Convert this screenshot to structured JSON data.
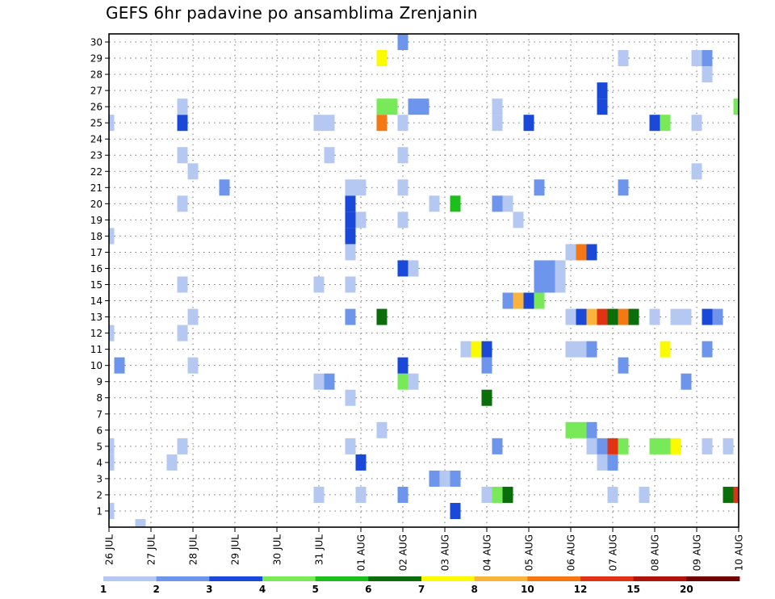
{
  "title": "GEFS 6hr padavine po ansamblima Zrenjanin",
  "chart_data": {
    "type": "heatmap",
    "title": "GEFS 6hr padavine po ansamblima Zrenjanin",
    "xlabel": "",
    "ylabel": "",
    "x_ticks": [
      "26 JUL",
      "27 JUL",
      "28 JUL",
      "29 JUL",
      "30 JUL",
      "31 JUL",
      "01 AUG",
      "02 AUG",
      "03 AUG",
      "04 AUG",
      "05 AUG",
      "06 AUG",
      "07 AUG",
      "08 AUG",
      "09 AUG",
      "10 AUG"
    ],
    "y_ticks": [
      1,
      2,
      3,
      4,
      5,
      6,
      7,
      8,
      9,
      10,
      11,
      12,
      13,
      14,
      15,
      16,
      17,
      18,
      19,
      20,
      21,
      22,
      23,
      24,
      25,
      26,
      27,
      28,
      29,
      30
    ],
    "x_range_steps": [
      0,
      60
    ],
    "y_range": [
      0,
      30
    ],
    "grid": true,
    "legend": "bottom colorbar",
    "colorbar_labels": [
      "1",
      "2",
      "3",
      "4",
      "5",
      "6",
      "7",
      "8",
      "10",
      "12",
      "15",
      "20"
    ],
    "colorbar_colors": [
      "#b5c8f2",
      "#6e95ec",
      "#1a48d8",
      "#78ea5a",
      "#1dbf1d",
      "#0a6e0a",
      "#fafa00",
      "#fab43c",
      "#f57814",
      "#e13214",
      "#af140a",
      "#6e0000"
    ],
    "points": [
      {
        "x": 0,
        "y": 1,
        "c": 0
      },
      {
        "x": 0,
        "y": 4,
        "c": 0
      },
      {
        "x": 0,
        "y": 5,
        "c": 0
      },
      {
        "x": 0,
        "y": 12,
        "c": 0
      },
      {
        "x": 0,
        "y": 18,
        "c": 0
      },
      {
        "x": 0,
        "y": 25,
        "c": 0
      },
      {
        "x": 1,
        "y": 10,
        "c": 1
      },
      {
        "x": 3,
        "y": 0,
        "c": 0
      },
      {
        "x": 6,
        "y": 4,
        "c": 0
      },
      {
        "x": 7,
        "y": 5,
        "c": 0
      },
      {
        "x": 7,
        "y": 12,
        "c": 0
      },
      {
        "x": 7,
        "y": 15,
        "c": 0
      },
      {
        "x": 7,
        "y": 20,
        "c": 0
      },
      {
        "x": 7,
        "y": 23,
        "c": 0
      },
      {
        "x": 7,
        "y": 25,
        "c": 2
      },
      {
        "x": 7,
        "y": 26,
        "c": 0
      },
      {
        "x": 8,
        "y": 10,
        "c": 0
      },
      {
        "x": 8,
        "y": 13,
        "c": 0
      },
      {
        "x": 8,
        "y": 22,
        "c": 0
      },
      {
        "x": 11,
        "y": 21,
        "c": 1
      },
      {
        "x": 20,
        "y": 2,
        "c": 0
      },
      {
        "x": 20,
        "y": 9,
        "c": 0
      },
      {
        "x": 20,
        "y": 15,
        "c": 0
      },
      {
        "x": 20,
        "y": 25,
        "c": 0
      },
      {
        "x": 21,
        "y": 9,
        "c": 1
      },
      {
        "x": 21,
        "y": 23,
        "c": 0
      },
      {
        "x": 21,
        "y": 25,
        "c": 0
      },
      {
        "x": 23,
        "y": 5,
        "c": 0
      },
      {
        "x": 23,
        "y": 8,
        "c": 0
      },
      {
        "x": 23,
        "y": 13,
        "c": 1
      },
      {
        "x": 23,
        "y": 15,
        "c": 0
      },
      {
        "x": 23,
        "y": 17,
        "c": 0
      },
      {
        "x": 23,
        "y": 18,
        "c": 2
      },
      {
        "x": 23,
        "y": 19,
        "c": 2
      },
      {
        "x": 23,
        "y": 20,
        "c": 2
      },
      {
        "x": 23,
        "y": 21,
        "c": 0
      },
      {
        "x": 24,
        "y": 2,
        "c": 0
      },
      {
        "x": 24,
        "y": 4,
        "c": 2
      },
      {
        "x": 24,
        "y": 19,
        "c": 0
      },
      {
        "x": 24,
        "y": 21,
        "c": 0
      },
      {
        "x": 26,
        "y": 6,
        "c": 0
      },
      {
        "x": 26,
        "y": 13,
        "c": 5
      },
      {
        "x": 26,
        "y": 25,
        "c": 8
      },
      {
        "x": 26,
        "y": 26,
        "c": 3
      },
      {
        "x": 26,
        "y": 29,
        "c": 6
      },
      {
        "x": 27,
        "y": 26,
        "c": 3
      },
      {
        "x": 28,
        "y": 2,
        "c": 1
      },
      {
        "x": 28,
        "y": 9,
        "c": 3
      },
      {
        "x": 28,
        "y": 10,
        "c": 2
      },
      {
        "x": 28,
        "y": 16,
        "c": 2
      },
      {
        "x": 28,
        "y": 19,
        "c": 0
      },
      {
        "x": 28,
        "y": 21,
        "c": 0
      },
      {
        "x": 28,
        "y": 23,
        "c": 0
      },
      {
        "x": 28,
        "y": 25,
        "c": 0
      },
      {
        "x": 28,
        "y": 30,
        "c": 1
      },
      {
        "x": 29,
        "y": 9,
        "c": 0
      },
      {
        "x": 29,
        "y": 16,
        "c": 0
      },
      {
        "x": 29,
        "y": 26,
        "c": 1
      },
      {
        "x": 30,
        "y": 26,
        "c": 1
      },
      {
        "x": 31,
        "y": 3,
        "c": 1
      },
      {
        "x": 31,
        "y": 20,
        "c": 0
      },
      {
        "x": 32,
        "y": 3,
        "c": 0
      },
      {
        "x": 33,
        "y": 1,
        "c": 2
      },
      {
        "x": 33,
        "y": 3,
        "c": 1
      },
      {
        "x": 33,
        "y": 20,
        "c": 4
      },
      {
        "x": 34,
        "y": 11,
        "c": 0
      },
      {
        "x": 35,
        "y": 11,
        "c": 6
      },
      {
        "x": 36,
        "y": 2,
        "c": 0
      },
      {
        "x": 36,
        "y": 8,
        "c": 5
      },
      {
        "x": 36,
        "y": 10,
        "c": 1
      },
      {
        "x": 36,
        "y": 11,
        "c": 2
      },
      {
        "x": 37,
        "y": 2,
        "c": 3
      },
      {
        "x": 37,
        "y": 5,
        "c": 1
      },
      {
        "x": 37,
        "y": 20,
        "c": 1
      },
      {
        "x": 37,
        "y": 25,
        "c": 0
      },
      {
        "x": 37,
        "y": 26,
        "c": 0
      },
      {
        "x": 38,
        "y": 2,
        "c": 5
      },
      {
        "x": 38,
        "y": 14,
        "c": 1
      },
      {
        "x": 38,
        "y": 20,
        "c": 0
      },
      {
        "x": 39,
        "y": 14,
        "c": 7
      },
      {
        "x": 39,
        "y": 19,
        "c": 0
      },
      {
        "x": 40,
        "y": 14,
        "c": 2
      },
      {
        "x": 40,
        "y": 25,
        "c": 2
      },
      {
        "x": 41,
        "y": 14,
        "c": 3
      },
      {
        "x": 41,
        "y": 15,
        "c": 1
      },
      {
        "x": 41,
        "y": 16,
        "c": 1
      },
      {
        "x": 41,
        "y": 21,
        "c": 1
      },
      {
        "x": 42,
        "y": 15,
        "c": 1
      },
      {
        "x": 42,
        "y": 16,
        "c": 1
      },
      {
        "x": 43,
        "y": 15,
        "c": 0
      },
      {
        "x": 43,
        "y": 16,
        "c": 0
      },
      {
        "x": 44,
        "y": 6,
        "c": 3
      },
      {
        "x": 44,
        "y": 11,
        "c": 0
      },
      {
        "x": 44,
        "y": 13,
        "c": 0
      },
      {
        "x": 44,
        "y": 17,
        "c": 0
      },
      {
        "x": 45,
        "y": 6,
        "c": 3
      },
      {
        "x": 45,
        "y": 11,
        "c": 0
      },
      {
        "x": 45,
        "y": 13,
        "c": 2
      },
      {
        "x": 45,
        "y": 17,
        "c": 8
      },
      {
        "x": 46,
        "y": 5,
        "c": 0
      },
      {
        "x": 46,
        "y": 6,
        "c": 1
      },
      {
        "x": 46,
        "y": 11,
        "c": 1
      },
      {
        "x": 46,
        "y": 13,
        "c": 7
      },
      {
        "x": 46,
        "y": 17,
        "c": 2
      },
      {
        "x": 47,
        "y": 4,
        "c": 0
      },
      {
        "x": 47,
        "y": 5,
        "c": 1
      },
      {
        "x": 47,
        "y": 13,
        "c": 9
      },
      {
        "x": 47,
        "y": 26,
        "c": 2
      },
      {
        "x": 47,
        "y": 27,
        "c": 2
      },
      {
        "x": 48,
        "y": 2,
        "c": 0
      },
      {
        "x": 48,
        "y": 4,
        "c": 1
      },
      {
        "x": 48,
        "y": 5,
        "c": 9
      },
      {
        "x": 48,
        "y": 13,
        "c": 5
      },
      {
        "x": 49,
        "y": 5,
        "c": 3
      },
      {
        "x": 49,
        "y": 10,
        "c": 1
      },
      {
        "x": 49,
        "y": 13,
        "c": 8
      },
      {
        "x": 49,
        "y": 21,
        "c": 1
      },
      {
        "x": 49,
        "y": 29,
        "c": 0
      },
      {
        "x": 50,
        "y": 13,
        "c": 5
      },
      {
        "x": 51,
        "y": 2,
        "c": 0
      },
      {
        "x": 52,
        "y": 5,
        "c": 3
      },
      {
        "x": 52,
        "y": 13,
        "c": 0
      },
      {
        "x": 52,
        "y": 25,
        "c": 2
      },
      {
        "x": 53,
        "y": 5,
        "c": 3
      },
      {
        "x": 53,
        "y": 11,
        "c": 6
      },
      {
        "x": 53,
        "y": 25,
        "c": 3
      },
      {
        "x": 54,
        "y": 5,
        "c": 6
      },
      {
        "x": 54,
        "y": 13,
        "c": 0
      },
      {
        "x": 55,
        "y": 9,
        "c": 1
      },
      {
        "x": 55,
        "y": 13,
        "c": 0
      },
      {
        "x": 56,
        "y": 22,
        "c": 0
      },
      {
        "x": 56,
        "y": 25,
        "c": 0
      },
      {
        "x": 56,
        "y": 29,
        "c": 0
      },
      {
        "x": 57,
        "y": 5,
        "c": 0
      },
      {
        "x": 57,
        "y": 11,
        "c": 1
      },
      {
        "x": 57,
        "y": 13,
        "c": 2
      },
      {
        "x": 57,
        "y": 28,
        "c": 0
      },
      {
        "x": 57,
        "y": 29,
        "c": 1
      },
      {
        "x": 58,
        "y": 13,
        "c": 1
      },
      {
        "x": 59,
        "y": 2,
        "c": 5
      },
      {
        "x": 59,
        "y": 5,
        "c": 0
      },
      {
        "x": 60,
        "y": 2,
        "c": 9
      },
      {
        "x": 60,
        "y": 26,
        "c": 3
      }
    ]
  }
}
